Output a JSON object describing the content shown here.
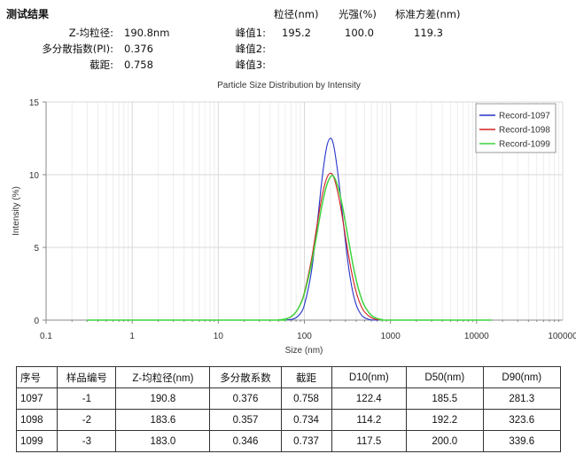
{
  "summary": {
    "title": "测试结果",
    "z_avg_label": "Z-均粒径:",
    "z_avg_value": "190.8nm",
    "pi_label": "多分散指数(PI):",
    "pi_value": "0.376",
    "intercept_label": "截距:",
    "intercept_value": "0.758",
    "peak_headers": [
      "粒径(nm)",
      "光强(%)",
      "标准方差(nm)"
    ],
    "peaks": [
      {
        "label": "峰值1:",
        "size": "195.2",
        "intensity": "100.0",
        "std": "119.3"
      },
      {
        "label": "峰值2:",
        "size": "",
        "intensity": "",
        "std": ""
      },
      {
        "label": "峰值3:",
        "size": "",
        "intensity": "",
        "std": ""
      }
    ]
  },
  "chart_data": {
    "type": "line",
    "title": "Particle Size Distribution by Intensity",
    "xlabel": "Size (nm)",
    "ylabel": "Intensity (%)",
    "xscale": "log",
    "xlim": [
      0.1,
      100000
    ],
    "ylim": [
      0,
      15
    ],
    "xticks": [
      "0.1",
      "1",
      "10",
      "100",
      "1000",
      "10000",
      "100000"
    ],
    "yticks": [
      "0",
      "5",
      "10",
      "15"
    ],
    "grid": true,
    "legend": "top-right",
    "x": [
      0.3,
      40,
      50,
      60,
      70,
      80,
      90,
      100,
      120,
      140,
      160,
      180,
      200,
      220,
      250,
      280,
      320,
      360,
      400,
      450,
      500,
      600,
      700,
      800,
      1000,
      15000
    ],
    "series": [
      {
        "name": "Record-1097",
        "color": "#2433c8",
        "values": [
          0,
          0,
          0,
          0.01,
          0.04,
          0.16,
          0.46,
          1.05,
          3.24,
          6.47,
          9.66,
          11.8,
          12.5,
          11.94,
          9.66,
          6.97,
          4.0,
          2.1,
          1.05,
          0.42,
          0.16,
          0.01,
          0,
          0,
          0,
          0
        ]
      },
      {
        "name": "Record-1098",
        "color": "#d42020",
        "values": [
          0,
          0,
          0.01,
          0.07,
          0.22,
          0.56,
          1.12,
          1.92,
          4.09,
          6.5,
          8.5,
          9.7,
          10.1,
          9.8,
          8.5,
          6.84,
          4.71,
          3.07,
          1.92,
          1.04,
          0.56,
          0.16,
          0.04,
          0.01,
          0,
          0
        ]
      },
      {
        "name": "Record-1099",
        "color": "#3fd43f",
        "values": [
          0,
          0,
          0.02,
          0.08,
          0.24,
          0.57,
          1.09,
          1.82,
          3.78,
          5.97,
          7.89,
          9.2,
          9.83,
          9.87,
          9.0,
          7.67,
          5.74,
          4.05,
          2.75,
          1.65,
          0.97,
          0.33,
          0.11,
          0.04,
          0,
          0
        ]
      }
    ]
  },
  "table": {
    "headers": [
      "序号",
      "样品编号",
      "Z-均粒径(nm)",
      "多分散系数",
      "截距",
      "D10(nm)",
      "D50(nm)",
      "D90(nm)"
    ],
    "rows": [
      [
        "1097",
        "-1",
        "190.8",
        "0.376",
        "0.758",
        "122.4",
        "185.5",
        "281.3"
      ],
      [
        "1098",
        "-2",
        "183.6",
        "0.357",
        "0.734",
        "114.2",
        "192.2",
        "323.6"
      ],
      [
        "1099",
        "-3",
        "183.0",
        "0.346",
        "0.737",
        "117.5",
        "200.0",
        "339.6"
      ]
    ]
  }
}
